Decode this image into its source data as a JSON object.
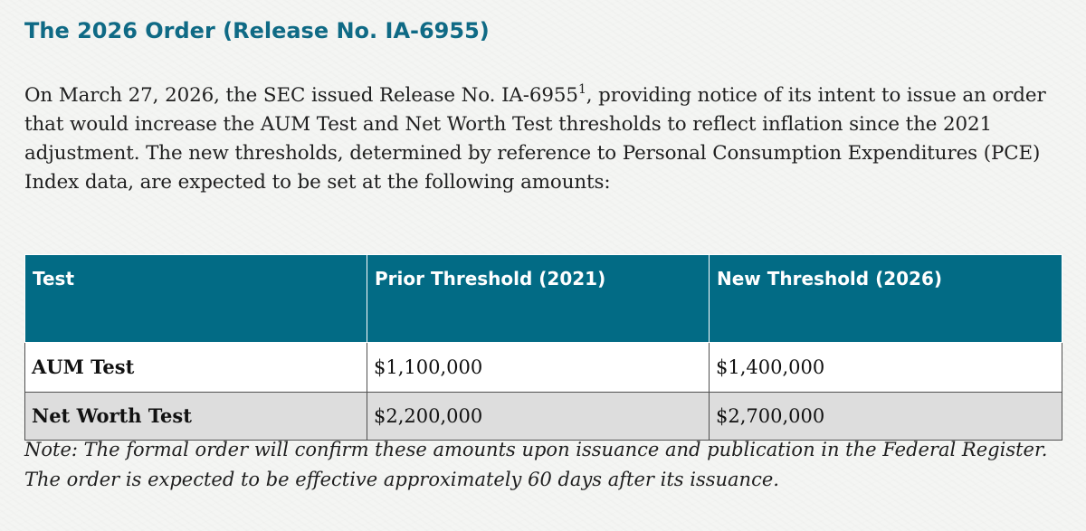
{
  "document": {
    "heading": "The 2026 Order (Release No. IA-6955)",
    "intro": {
      "before_superscript": "On March 27, 2026, the SEC issued Release No. IA-6955",
      "superscript": "1",
      "after_superscript": ", providing notice of its intent to issue an order that would increase the AUM Test and Net Worth Test thresholds to reflect inflation since the 2021 adjustment. The new thresholds, determined by reference to Personal Consumption Expenditures (PCE) Index data, are expected to be set at the following amounts:"
    },
    "table": {
      "headers": [
        "Test",
        "Prior Threshold (2021)",
        "New Threshold (2026)"
      ],
      "rows": [
        [
          "AUM Test",
          "$1,100,000",
          "$1,400,000"
        ],
        [
          "Net Worth Test",
          "$2,200,000",
          "$2,700,000"
        ]
      ]
    },
    "note": "Note: The formal order will confirm these amounts upon issuance and publication in the Federal Register. The order is expected to be effective approximately 60 days after its issuance."
  },
  "colors": {
    "heading": "#0f6a85",
    "table_header": "#026b85",
    "alternate_row": "#dddddd",
    "page_background": "#f4f5f3"
  }
}
